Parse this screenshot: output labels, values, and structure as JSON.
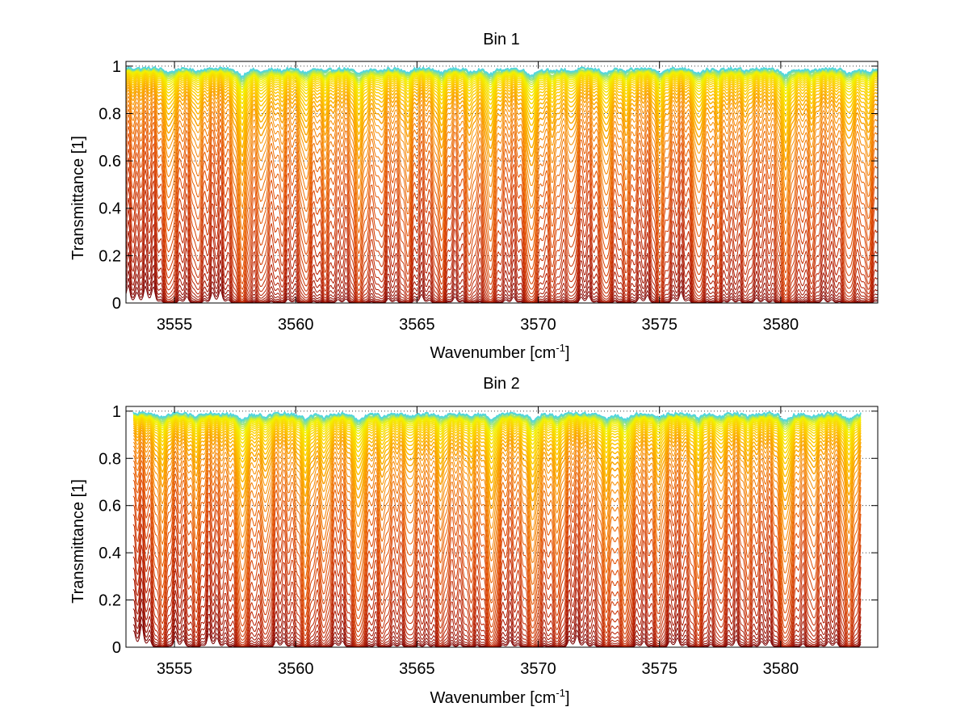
{
  "chart_data": [
    {
      "type": "line",
      "title": "Bin 1",
      "xlabel": "Wavenumber [cm",
      "xlabel_sup": "-1",
      "xlabel_end": "]",
      "ylabel": "Transmittance [1]",
      "xlim": [
        3553,
        3584
      ],
      "ylim": [
        0,
        1.02
      ],
      "x_ticks": [
        3555,
        3560,
        3565,
        3570,
        3575,
        3580
      ],
      "y_ticks": [
        0,
        0.2,
        0.4,
        0.6,
        0.8,
        1
      ],
      "x_tick_labels": [
        "3555",
        "3560",
        "3565",
        "3570",
        "3575",
        "3580"
      ],
      "y_tick_labels": [
        "0",
        "0.2",
        "0.4",
        "0.6",
        "0.8",
        "1"
      ],
      "grid": "dotted",
      "series_count": 48,
      "x_range": [
        3553,
        3584
      ],
      "colormap": [
        "#7a0000",
        "#b81e00",
        "#e04a00",
        "#f78a00",
        "#fdc800",
        "#f2f200",
        "#4fd6e0"
      ],
      "absorption_lines": [
        {
          "x": 3554.8,
          "depth": 0.55,
          "width": 0.22
        },
        {
          "x": 3555.9,
          "depth": 0.35,
          "width": 0.2
        },
        {
          "x": 3557.8,
          "depth": 1.0,
          "width": 0.2
        },
        {
          "x": 3558.6,
          "depth": 0.45,
          "width": 0.18
        },
        {
          "x": 3559.4,
          "depth": 0.3,
          "width": 0.18
        },
        {
          "x": 3560.4,
          "depth": 0.55,
          "width": 0.2
        },
        {
          "x": 3561.2,
          "depth": 0.4,
          "width": 0.18
        },
        {
          "x": 3562.6,
          "depth": 0.75,
          "width": 0.22
        },
        {
          "x": 3563.5,
          "depth": 0.35,
          "width": 0.18
        },
        {
          "x": 3564.6,
          "depth": 0.45,
          "width": 0.2
        },
        {
          "x": 3566.0,
          "depth": 0.6,
          "width": 0.2
        },
        {
          "x": 3567.2,
          "depth": 0.4,
          "width": 0.18
        },
        {
          "x": 3568.0,
          "depth": 0.8,
          "width": 0.2
        },
        {
          "x": 3569.7,
          "depth": 0.9,
          "width": 0.22
        },
        {
          "x": 3570.6,
          "depth": 0.45,
          "width": 0.2
        },
        {
          "x": 3571.4,
          "depth": 0.4,
          "width": 0.18
        },
        {
          "x": 3572.8,
          "depth": 0.65,
          "width": 0.2
        },
        {
          "x": 3573.6,
          "depth": 0.4,
          "width": 0.18
        },
        {
          "x": 3575.0,
          "depth": 0.55,
          "width": 0.2
        },
        {
          "x": 3576.6,
          "depth": 0.6,
          "width": 0.2
        },
        {
          "x": 3577.4,
          "depth": 0.4,
          "width": 0.18
        },
        {
          "x": 3578.6,
          "depth": 0.35,
          "width": 0.2
        },
        {
          "x": 3580.2,
          "depth": 0.95,
          "width": 0.22
        },
        {
          "x": 3581.3,
          "depth": 0.4,
          "width": 0.2
        },
        {
          "x": 3582.8,
          "depth": 0.7,
          "width": 0.22
        },
        {
          "x": 3583.6,
          "depth": 0.45,
          "width": 0.2
        }
      ]
    },
    {
      "type": "line",
      "title": "Bin 2",
      "xlabel": "Wavenumber [cm",
      "xlabel_sup": "-1",
      "xlabel_end": "]",
      "ylabel": "Transmittance [1]",
      "xlim": [
        3553,
        3584
      ],
      "ylim": [
        0,
        1.02
      ],
      "x_ticks": [
        3555,
        3560,
        3565,
        3570,
        3575,
        3580
      ],
      "y_ticks": [
        0,
        0.2,
        0.4,
        0.6,
        0.8,
        1
      ],
      "x_tick_labels": [
        "3555",
        "3560",
        "3565",
        "3570",
        "3575",
        "3580"
      ],
      "y_tick_labels": [
        "0",
        "0.2",
        "0.4",
        "0.6",
        "0.8",
        "1"
      ],
      "grid": "dotted",
      "series_count": 48,
      "x_range": [
        3553.3,
        3583.3
      ],
      "colormap": [
        "#7a0000",
        "#b81e00",
        "#e04a00",
        "#f78a00",
        "#fdc800",
        "#f2f200",
        "#4fd6e0"
      ],
      "absorption_lines": [
        {
          "x": 3554.5,
          "depth": 0.5,
          "width": 0.22
        },
        {
          "x": 3555.9,
          "depth": 0.35,
          "width": 0.2
        },
        {
          "x": 3557.8,
          "depth": 0.95,
          "width": 0.2
        },
        {
          "x": 3558.8,
          "depth": 0.45,
          "width": 0.18
        },
        {
          "x": 3560.4,
          "depth": 0.8,
          "width": 0.2
        },
        {
          "x": 3561.2,
          "depth": 0.45,
          "width": 0.18
        },
        {
          "x": 3562.6,
          "depth": 0.85,
          "width": 0.22
        },
        {
          "x": 3563.6,
          "depth": 0.4,
          "width": 0.18
        },
        {
          "x": 3564.7,
          "depth": 0.45,
          "width": 0.2
        },
        {
          "x": 3566.0,
          "depth": 0.55,
          "width": 0.2
        },
        {
          "x": 3567.2,
          "depth": 0.4,
          "width": 0.18
        },
        {
          "x": 3568.1,
          "depth": 0.85,
          "width": 0.2
        },
        {
          "x": 3569.8,
          "depth": 0.9,
          "width": 0.22
        },
        {
          "x": 3570.8,
          "depth": 0.45,
          "width": 0.2
        },
        {
          "x": 3572.8,
          "depth": 0.7,
          "width": 0.2
        },
        {
          "x": 3573.6,
          "depth": 0.85,
          "width": 0.2
        },
        {
          "x": 3575.0,
          "depth": 0.5,
          "width": 0.2
        },
        {
          "x": 3576.6,
          "depth": 0.65,
          "width": 0.2
        },
        {
          "x": 3577.5,
          "depth": 0.4,
          "width": 0.18
        },
        {
          "x": 3578.6,
          "depth": 0.35,
          "width": 0.2
        },
        {
          "x": 3580.2,
          "depth": 0.9,
          "width": 0.22
        },
        {
          "x": 3581.3,
          "depth": 0.4,
          "width": 0.2
        },
        {
          "x": 3582.8,
          "depth": 0.75,
          "width": 0.22
        }
      ]
    }
  ]
}
